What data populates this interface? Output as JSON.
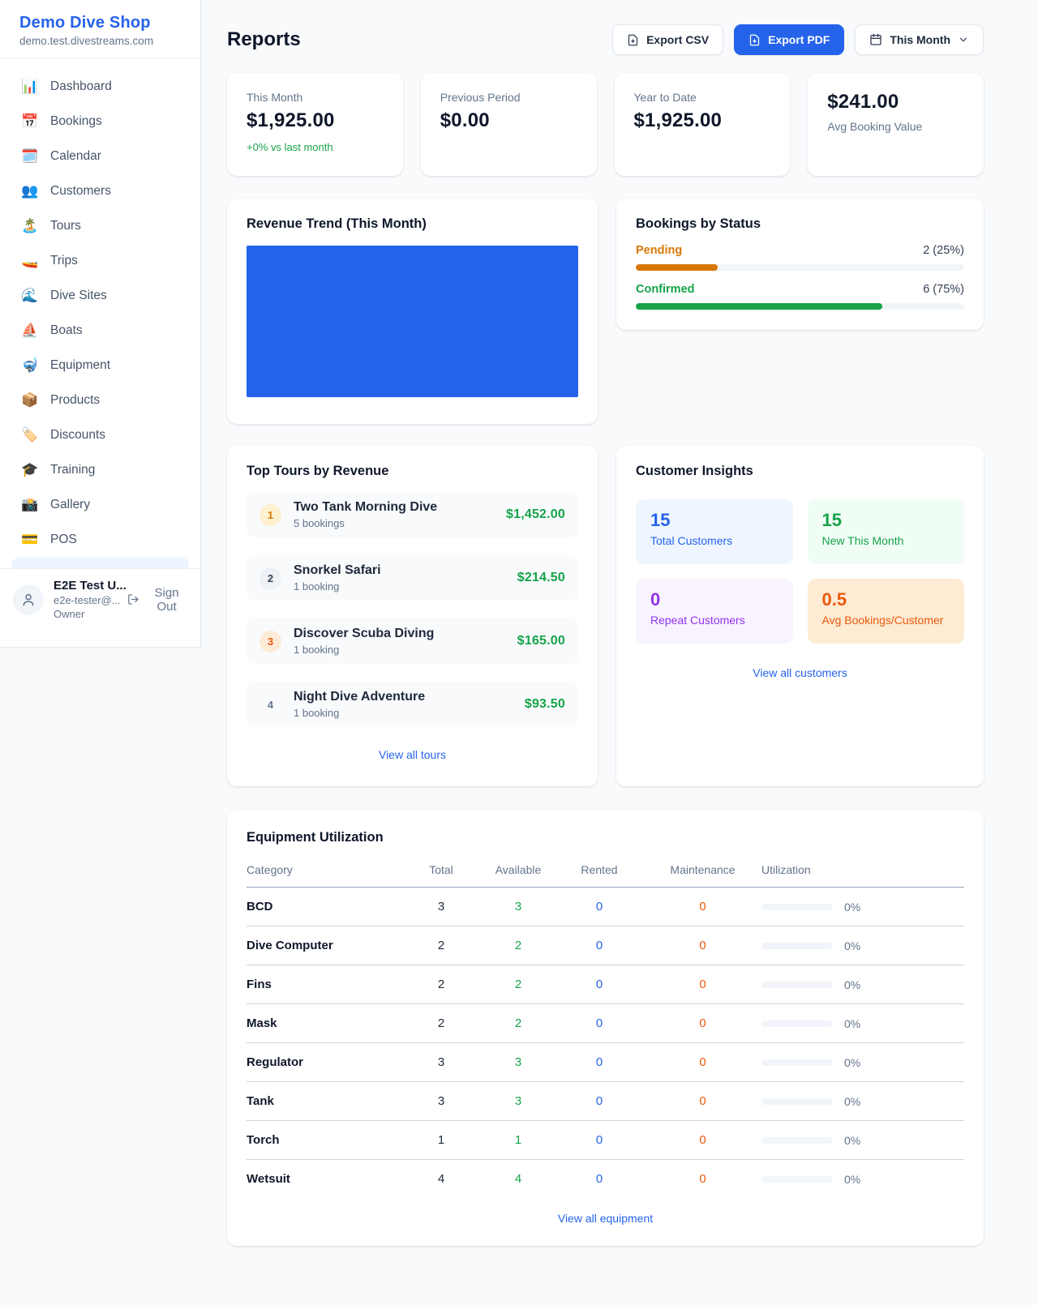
{
  "colors": {
    "accent_blue": "#2563eb",
    "green": "#16a34a",
    "amber": "#d97706",
    "orange": "#ea580c",
    "purple": "#9333ea",
    "tile_blue_bg": "#eff6ff",
    "tile_green_bg": "#f0fdf4",
    "tile_purple_bg": "#f8f3ff",
    "tile_orange_bg": "#fdebd3"
  },
  "sidebar": {
    "brand": {
      "name": "Demo Dive Shop",
      "domain": "demo.test.divestreams.com"
    },
    "nav": [
      {
        "icon": "📊",
        "label": "Dashboard"
      },
      {
        "icon": "📅",
        "label": "Bookings"
      },
      {
        "icon": "🗓️",
        "label": "Calendar"
      },
      {
        "icon": "👥",
        "label": "Customers"
      },
      {
        "icon": "🏝️",
        "label": "Tours"
      },
      {
        "icon": "🚤",
        "label": "Trips"
      },
      {
        "icon": "🌊",
        "label": "Dive Sites"
      },
      {
        "icon": "⛵",
        "label": "Boats"
      },
      {
        "icon": "🤿",
        "label": "Equipment"
      },
      {
        "icon": "📦",
        "label": "Products"
      },
      {
        "icon": "🏷️",
        "label": "Discounts"
      },
      {
        "icon": "🎓",
        "label": "Training"
      },
      {
        "icon": "📸",
        "label": "Gallery"
      },
      {
        "icon": "💳",
        "label": "POS"
      }
    ],
    "user": {
      "name": "E2E Test U...",
      "email": "e2e-tester@...",
      "role": "Owner",
      "sign_out_label": "Sign Out"
    }
  },
  "header": {
    "title": "Reports",
    "export_csv_label": "Export CSV",
    "export_pdf_label": "Export PDF",
    "period_label": "This Month"
  },
  "stats": [
    {
      "label": "This Month",
      "value": "$1,925.00",
      "delta": "+0% vs last month"
    },
    {
      "label": "Previous Period",
      "value": "$0.00"
    },
    {
      "label": "Year to Date",
      "value": "$1,925.00"
    },
    {
      "label": "Avg Booking Value",
      "value": "$241.00"
    }
  ],
  "revenue_trend": {
    "title": "Revenue Trend (This Month)",
    "bar_color": "#2563eb"
  },
  "bookings_by_status": {
    "title": "Bookings by Status",
    "rows": [
      {
        "label": "Pending",
        "value_text": "2 (25%)",
        "percent": 25,
        "color": "#d97706"
      },
      {
        "label": "Confirmed",
        "value_text": "6 (75%)",
        "percent": 75,
        "color": "#16a34a"
      }
    ]
  },
  "top_tours": {
    "title": "Top Tours by Revenue",
    "rows": [
      {
        "rank": "1",
        "name": "Two Tank Morning Dive",
        "bookings": "5 bookings",
        "revenue": "$1,452.00"
      },
      {
        "rank": "2",
        "name": "Snorkel Safari",
        "bookings": "1 booking",
        "revenue": "$214.50"
      },
      {
        "rank": "3",
        "name": "Discover Scuba Diving",
        "bookings": "1 booking",
        "revenue": "$165.00"
      },
      {
        "rank": "4",
        "name": "Night Dive Adventure",
        "bookings": "1 booking",
        "revenue": "$93.50"
      }
    ],
    "view_all": "View all tours"
  },
  "customer_insights": {
    "title": "Customer Insights",
    "tiles": [
      {
        "value": "15",
        "label": "Total Customers",
        "color": "#2563eb",
        "bg": "#eff6ff"
      },
      {
        "value": "15",
        "label": "New This Month",
        "color": "#16a34a",
        "bg": "#f0fdf4"
      },
      {
        "value": "0",
        "label": "Repeat Customers",
        "color": "#9333ea",
        "bg": "#f8f3ff"
      },
      {
        "value": "0.5",
        "label": "Avg Bookings/Customer",
        "color": "#ea580c",
        "bg": "#fdebd3"
      }
    ],
    "view_all": "View all customers"
  },
  "equipment": {
    "title": "Equipment Utilization",
    "columns": [
      "Category",
      "Total",
      "Available",
      "Rented",
      "Maintenance",
      "Utilization"
    ],
    "rows": [
      {
        "category": "BCD",
        "total": "3",
        "available": "3",
        "rented": "0",
        "maintenance": "0",
        "utilization_pct": 0,
        "utilization_text": "0%"
      },
      {
        "category": "Dive Computer",
        "total": "2",
        "available": "2",
        "rented": "0",
        "maintenance": "0",
        "utilization_pct": 0,
        "utilization_text": "0%"
      },
      {
        "category": "Fins",
        "total": "2",
        "available": "2",
        "rented": "0",
        "maintenance": "0",
        "utilization_pct": 0,
        "utilization_text": "0%"
      },
      {
        "category": "Mask",
        "total": "2",
        "available": "2",
        "rented": "0",
        "maintenance": "0",
        "utilization_pct": 0,
        "utilization_text": "0%"
      },
      {
        "category": "Regulator",
        "total": "3",
        "available": "3",
        "rented": "0",
        "maintenance": "0",
        "utilization_pct": 0,
        "utilization_text": "0%"
      },
      {
        "category": "Tank",
        "total": "3",
        "available": "3",
        "rented": "0",
        "maintenance": "0",
        "utilization_pct": 0,
        "utilization_text": "0%"
      },
      {
        "category": "Torch",
        "total": "1",
        "available": "1",
        "rented": "0",
        "maintenance": "0",
        "utilization_pct": 0,
        "utilization_text": "0%"
      },
      {
        "category": "Wetsuit",
        "total": "4",
        "available": "4",
        "rented": "0",
        "maintenance": "0",
        "utilization_pct": 0,
        "utilization_text": "0%"
      }
    ],
    "view_all": "View all equipment"
  }
}
